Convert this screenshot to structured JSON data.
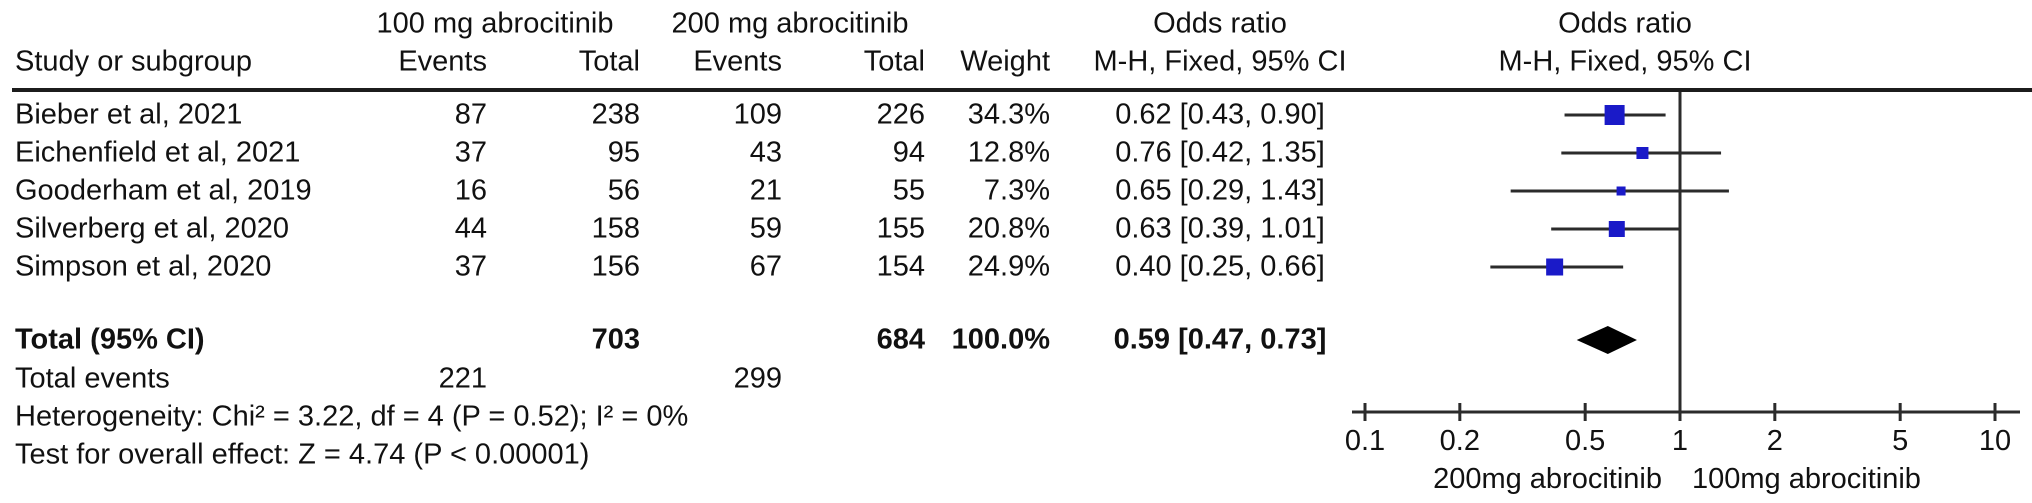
{
  "header": {
    "group1": "100 mg abrocitinib",
    "group2": "200 mg abrocitinib",
    "study": "Study or subgroup",
    "events": "Events",
    "total": "Total",
    "weight": "Weight",
    "or_line1": "Odds ratio",
    "or_line2": "M-H, Fixed, 95% CI",
    "plot_line1": "Odds ratio",
    "plot_line2": "M-H, Fixed, 95% CI"
  },
  "rows": [
    {
      "study": "Bieber et al, 2021",
      "e1": "87",
      "t1": "238",
      "e2": "109",
      "t2": "226",
      "weight": "34.3%",
      "or_text": "0.62 [0.43, 0.90]"
    },
    {
      "study": "Eichenfield et al, 2021",
      "e1": "37",
      "t1": "95",
      "e2": "43",
      "t2": "94",
      "weight": "12.8%",
      "or_text": "0.76 [0.42, 1.35]"
    },
    {
      "study": "Gooderham et al, 2019",
      "e1": "16",
      "t1": "56",
      "e2": "21",
      "t2": "55",
      "weight": "7.3%",
      "or_text": "0.65 [0.29, 1.43]"
    },
    {
      "study": "Silverberg et al, 2020",
      "e1": "44",
      "t1": "158",
      "e2": "59",
      "t2": "155",
      "weight": "20.8%",
      "or_text": "0.63 [0.39, 1.01]"
    },
    {
      "study": "Simpson et al, 2020",
      "e1": "37",
      "t1": "156",
      "e2": "67",
      "t2": "154",
      "weight": "24.9%",
      "or_text": "0.40 [0.25, 0.66]"
    }
  ],
  "totals": {
    "label": "Total (95% CI)",
    "t1": "703",
    "t2": "684",
    "weight": "100.0%",
    "or_text": "0.59 [0.47, 0.73]",
    "events_label": "Total events",
    "e1": "221",
    "e2": "299"
  },
  "stats": {
    "heterogeneity": "Heterogeneity: Chi² = 3.22, df = 4 (P = 0.52); I² = 0%",
    "overall": "Test for overall effect: Z = 4.74 (P < 0.00001)"
  },
  "axis": {
    "ticks": [
      0.1,
      0.2,
      0.5,
      1,
      2,
      5,
      10
    ],
    "left_label": "200mg abrocitinib",
    "right_label": "100mg abrocitinib"
  },
  "colors": {
    "marker": "#1a1ac8",
    "diamond": "#000000",
    "line": "#2b2b2b",
    "axis_group_label": "#454b55"
  },
  "chart_data": {
    "type": "forest",
    "effect_measure": "Odds ratio (M-H, Fixed, 95% CI)",
    "x_scale": "log",
    "xlim": [
      0.1,
      10
    ],
    "x_ticks": [
      0.1,
      0.2,
      0.5,
      1,
      2,
      5,
      10
    ],
    "favours_left": "200mg abrocitinib",
    "favours_right": "100mg abrocitinib",
    "studies": [
      {
        "name": "Bieber et al, 2021",
        "events_100mg": 87,
        "total_100mg": 238,
        "events_200mg": 109,
        "total_200mg": 226,
        "weight_pct": 34.3,
        "or": 0.62,
        "ci_low": 0.43,
        "ci_high": 0.9
      },
      {
        "name": "Eichenfield et al, 2021",
        "events_100mg": 37,
        "total_100mg": 95,
        "events_200mg": 43,
        "total_200mg": 94,
        "weight_pct": 12.8,
        "or": 0.76,
        "ci_low": 0.42,
        "ci_high": 1.35
      },
      {
        "name": "Gooderham et al, 2019",
        "events_100mg": 16,
        "total_100mg": 56,
        "events_200mg": 21,
        "total_200mg": 55,
        "weight_pct": 7.3,
        "or": 0.65,
        "ci_low": 0.29,
        "ci_high": 1.43
      },
      {
        "name": "Silverberg et al, 2020",
        "events_100mg": 44,
        "total_100mg": 158,
        "events_200mg": 59,
        "total_200mg": 155,
        "weight_pct": 20.8,
        "or": 0.63,
        "ci_low": 0.39,
        "ci_high": 1.01
      },
      {
        "name": "Simpson et al, 2020",
        "events_100mg": 37,
        "total_100mg": 156,
        "events_200mg": 67,
        "total_200mg": 154,
        "weight_pct": 24.9,
        "or": 0.4,
        "ci_low": 0.25,
        "ci_high": 0.66
      }
    ],
    "total": {
      "total_100mg": 703,
      "total_200mg": 684,
      "events_100mg": 221,
      "events_200mg": 299,
      "weight_pct": 100.0,
      "or": 0.59,
      "ci_low": 0.47,
      "ci_high": 0.73
    },
    "heterogeneity": {
      "chi2": 3.22,
      "df": 4,
      "p": 0.52,
      "i2_pct": 0
    },
    "overall_effect": {
      "z": 4.74,
      "p": "< 0.00001"
    }
  }
}
